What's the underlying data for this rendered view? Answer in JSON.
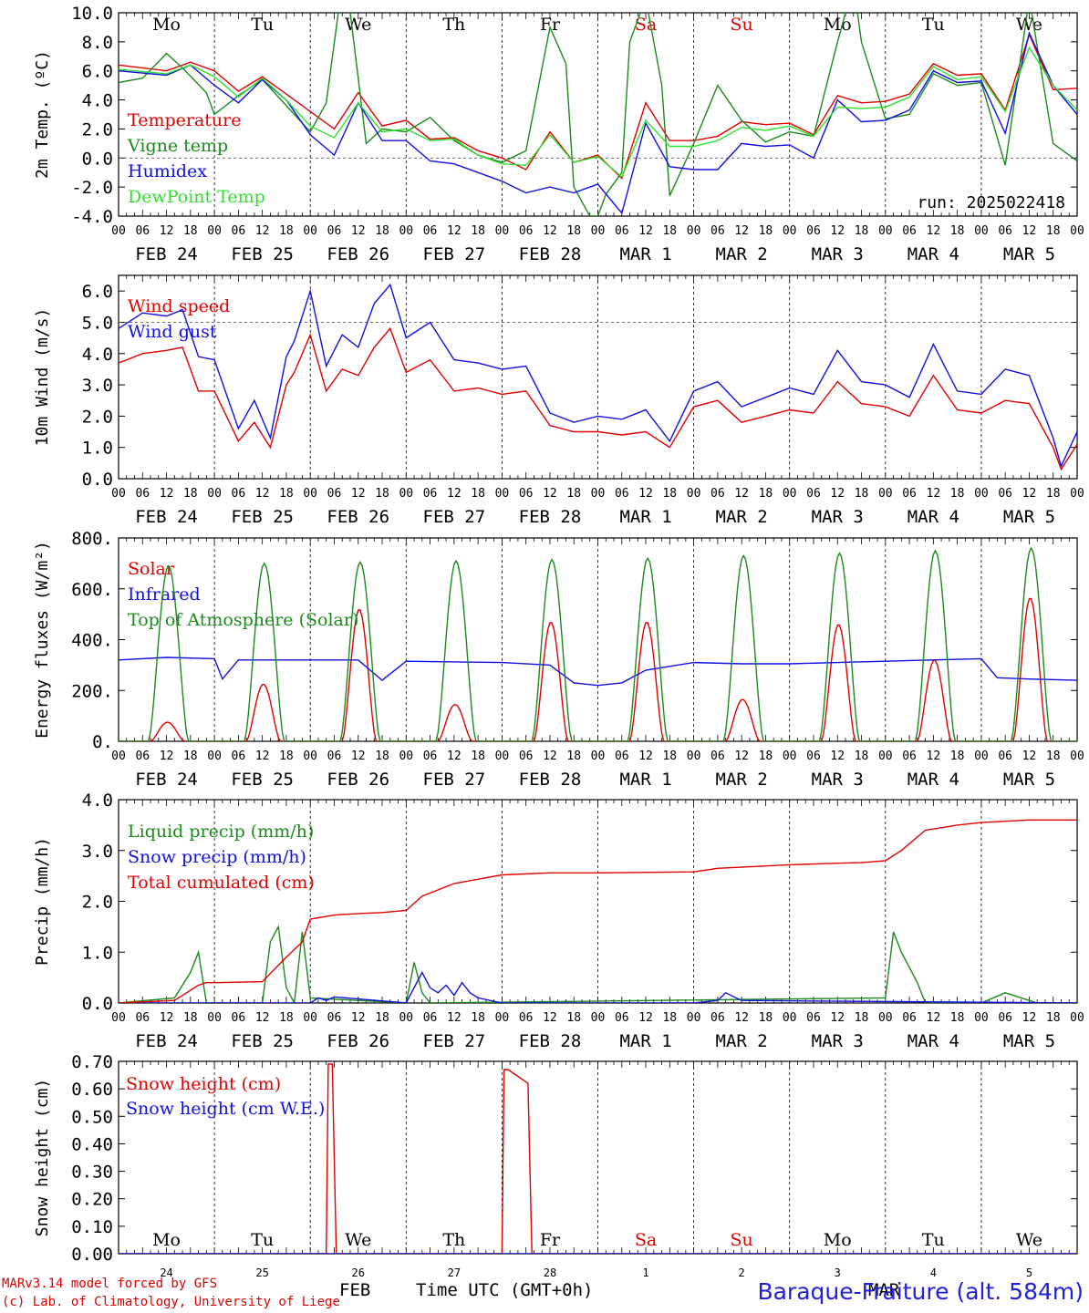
{
  "meta": {
    "run_label": "run: 2025022418",
    "model_label": "MARv3.14 model forced by GFS",
    "credit_label": "(c) Lab. of Climatology, University of Liege",
    "station_title": "Baraque-Fraiture (alt. 584m)",
    "time_axis_title": "Time UTC (GMT+0h)",
    "month_feb": "FEB",
    "month_mar": "MAR"
  },
  "day_names": [
    "Mo",
    "Tu",
    "We",
    "Th",
    "Fr",
    "Sa",
    "Su",
    "Mo",
    "Tu",
    "We"
  ],
  "weekend_days": [
    5,
    6
  ],
  "date_labels": [
    "FEB 24",
    "FEB 25",
    "FEB 26",
    "FEB 27",
    "FEB 28",
    "MAR  1",
    "MAR  2",
    "MAR  3",
    "MAR  4",
    "MAR  5"
  ],
  "day_numbers": [
    "24",
    "25",
    "26",
    "27",
    "28",
    "1",
    "2",
    "3",
    "4",
    "5"
  ],
  "hour_labels": [
    "00",
    "06",
    "12",
    "18"
  ],
  "last_hour_label": "00",
  "colors": {
    "red": "#e00000",
    "green": "#1a8a1a",
    "blue": "#1010e0",
    "lightgreen": "#30e030",
    "axis": "#000000"
  },
  "chart_data": [
    {
      "type": "line",
      "name": "temperature",
      "ylabel": "2m Temp. (ºC)",
      "ylim": [
        -4,
        10
      ],
      "y_ticks": [
        "-4.0",
        "-2.0",
        "0.0",
        "2.0",
        "4.0",
        "6.0",
        "8.0",
        "10.0"
      ],
      "ref_line": 0,
      "x_unit": "hours since Feb 24 00 UTC",
      "series": [
        {
          "name": "Temperature",
          "color": "#e00000",
          "x": [
            0,
            12,
            18,
            24,
            30,
            36,
            42,
            48,
            54,
            60,
            66,
            72,
            78,
            84,
            90,
            96,
            102,
            108,
            114,
            120,
            126,
            132,
            138,
            144,
            150,
            156,
            162,
            168,
            174,
            180,
            186,
            192,
            198,
            204,
            210,
            216,
            222,
            228,
            234,
            240
          ],
          "y": [
            6.4,
            6.0,
            6.6,
            6.0,
            4.6,
            5.6,
            4.4,
            3.2,
            2.0,
            4.5,
            2.2,
            2.6,
            1.3,
            1.4,
            0.5,
            0.0,
            -0.8,
            1.8,
            -0.3,
            0.2,
            -1.4,
            3.8,
            1.2,
            1.2,
            1.5,
            2.5,
            2.3,
            2.4,
            1.6,
            4.3,
            3.8,
            3.9,
            4.4,
            6.5,
            5.7,
            5.8,
            3.3,
            8.5,
            4.7,
            4.8
          ]
        },
        {
          "name": "Vigne temp",
          "color": "#1a8a1a",
          "x": [
            0,
            6,
            12,
            16,
            22,
            24,
            30,
            36,
            42,
            48,
            52,
            56,
            58,
            62,
            66,
            72,
            78,
            84,
            90,
            96,
            102,
            108,
            112,
            114,
            118,
            120,
            122,
            126,
            128,
            132,
            136,
            138,
            144,
            150,
            156,
            162,
            168,
            174,
            180,
            184,
            186,
            192,
            198,
            204,
            210,
            216,
            222,
            228,
            234,
            240
          ],
          "y": [
            5.2,
            5.5,
            7.2,
            6.2,
            4.5,
            3.0,
            4.3,
            5.4,
            3.6,
            1.8,
            3.8,
            12.0,
            10.0,
            1.0,
            2.0,
            1.8,
            2.8,
            1.2,
            0.2,
            -0.3,
            0.5,
            9.0,
            6.5,
            -2.0,
            -4.0,
            -4.0,
            -2.5,
            -1.0,
            8.0,
            11.0,
            5.0,
            -2.6,
            1.0,
            5.0,
            2.6,
            1.1,
            1.8,
            1.5,
            8.0,
            12.0,
            8.0,
            2.7,
            3.0,
            5.8,
            5.0,
            5.2,
            -0.5,
            11.0,
            1.0,
            -0.2
          ]
        },
        {
          "name": "Humidex",
          "color": "#1010e0",
          "x": [
            0,
            12,
            18,
            24,
            30,
            36,
            42,
            48,
            54,
            60,
            66,
            72,
            78,
            84,
            90,
            96,
            102,
            108,
            114,
            120,
            126,
            132,
            138,
            144,
            150,
            156,
            162,
            168,
            174,
            180,
            186,
            192,
            198,
            204,
            210,
            216,
            222,
            228,
            234,
            240
          ],
          "y": [
            6.0,
            5.7,
            6.4,
            5.0,
            3.8,
            5.4,
            4.0,
            1.6,
            0.2,
            3.8,
            1.2,
            1.2,
            -0.2,
            -0.4,
            -1.0,
            -1.6,
            -2.4,
            -2.0,
            -2.4,
            -1.8,
            -3.8,
            2.4,
            -0.6,
            -0.8,
            -0.8,
            1.0,
            0.8,
            0.9,
            0.0,
            4.0,
            2.5,
            2.6,
            3.3,
            6.0,
            5.2,
            5.3,
            1.7,
            8.6,
            5.0,
            3.0
          ]
        },
        {
          "name": "DewPoint Temp",
          "color": "#30e030",
          "x": [
            0,
            12,
            18,
            24,
            30,
            36,
            42,
            48,
            54,
            60,
            66,
            72,
            78,
            84,
            90,
            96,
            102,
            108,
            114,
            120,
            126,
            132,
            138,
            144,
            150,
            156,
            162,
            168,
            174,
            180,
            186,
            192,
            198,
            204,
            210,
            216,
            222,
            228,
            234,
            240
          ],
          "y": [
            6.1,
            5.8,
            6.4,
            5.6,
            4.2,
            5.5,
            4.0,
            2.2,
            1.4,
            3.8,
            1.8,
            2.0,
            1.2,
            1.3,
            0.2,
            -0.4,
            -0.5,
            1.6,
            -0.3,
            0.1,
            -1.3,
            2.6,
            0.8,
            0.8,
            1.2,
            2.1,
            1.9,
            2.2,
            1.5,
            3.5,
            3.4,
            3.5,
            4.2,
            6.3,
            5.4,
            5.6,
            3.2,
            7.6,
            5.0,
            3.3
          ]
        }
      ]
    },
    {
      "type": "line",
      "name": "wind",
      "ylabel": "10m Wind (m/s)",
      "ylim": [
        0,
        6.5
      ],
      "y_ticks": [
        "0.0",
        "1.0",
        "2.0",
        "3.0",
        "4.0",
        "5.0",
        "6.0"
      ],
      "ref_line": 5,
      "series": [
        {
          "name": "Wind speed",
          "color": "#e00000",
          "x": [
            0,
            6,
            12,
            16,
            20,
            24,
            30,
            34,
            38,
            42,
            44,
            48,
            52,
            56,
            60,
            64,
            68,
            72,
            78,
            84,
            90,
            96,
            102,
            108,
            114,
            120,
            126,
            132,
            138,
            144,
            150,
            156,
            162,
            168,
            174,
            180,
            186,
            192,
            198,
            204,
            210,
            216,
            222,
            228,
            234,
            236,
            240
          ],
          "y": [
            3.7,
            4.0,
            4.1,
            4.2,
            2.8,
            2.8,
            1.2,
            1.8,
            1.0,
            3.0,
            3.4,
            4.6,
            2.8,
            3.5,
            3.3,
            4.2,
            4.8,
            3.4,
            3.8,
            2.8,
            2.9,
            2.7,
            2.8,
            1.7,
            1.5,
            1.5,
            1.4,
            1.5,
            1.0,
            2.3,
            2.5,
            1.8,
            2.0,
            2.2,
            2.1,
            3.1,
            2.4,
            2.3,
            2.0,
            3.3,
            2.2,
            2.1,
            2.5,
            2.4,
            1.0,
            0.3,
            1.1
          ]
        },
        {
          "name": "Wind gust",
          "color": "#1010e0",
          "x": [
            0,
            6,
            12,
            16,
            20,
            24,
            30,
            34,
            38,
            42,
            44,
            48,
            52,
            56,
            60,
            64,
            68,
            72,
            78,
            84,
            90,
            96,
            102,
            108,
            114,
            120,
            126,
            132,
            138,
            144,
            150,
            156,
            162,
            168,
            174,
            180,
            186,
            192,
            198,
            204,
            210,
            216,
            222,
            228,
            234,
            236,
            240
          ],
          "y": [
            4.8,
            5.3,
            5.2,
            5.4,
            3.9,
            3.8,
            1.6,
            2.5,
            1.3,
            3.9,
            4.4,
            6.0,
            3.6,
            4.6,
            4.2,
            5.6,
            6.2,
            4.5,
            5.0,
            3.8,
            3.7,
            3.5,
            3.6,
            2.1,
            1.8,
            2.0,
            1.9,
            2.2,
            1.2,
            2.8,
            3.1,
            2.3,
            2.6,
            2.9,
            2.7,
            4.1,
            3.1,
            3.0,
            2.6,
            4.3,
            2.8,
            2.7,
            3.5,
            3.3,
            1.3,
            0.4,
            1.5
          ]
        }
      ]
    },
    {
      "type": "line",
      "name": "energy",
      "ylabel": "Energy fluxes (W/m²)",
      "ylim": [
        0,
        800
      ],
      "y_ticks": [
        "0.",
        "200.",
        "400.",
        "600.",
        "800."
      ],
      "series": [
        {
          "name": "Solar",
          "color": "#e00000",
          "day_peaks": [
            75,
            225,
            520,
            145,
            470,
            470,
            165,
            460,
            320,
            565
          ]
        },
        {
          "name": "Infrared",
          "color": "#1010e0",
          "x": [
            0,
            12,
            24,
            26,
            30,
            48,
            60,
            66,
            72,
            96,
            108,
            114,
            120,
            126,
            132,
            144,
            156,
            168,
            180,
            192,
            204,
            216,
            220,
            228,
            240
          ],
          "y": [
            320,
            330,
            325,
            245,
            320,
            320,
            320,
            240,
            315,
            310,
            300,
            230,
            220,
            230,
            280,
            310,
            305,
            305,
            310,
            315,
            320,
            325,
            250,
            245,
            240
          ]
        },
        {
          "name": "Top of Atmosphere (Solar)",
          "color": "#1a8a1a",
          "day_peaks": [
            690,
            700,
            705,
            710,
            715,
            720,
            730,
            740,
            750,
            760
          ]
        }
      ]
    },
    {
      "type": "line",
      "name": "precip",
      "ylabel": "Precip (mm/h)",
      "ylim": [
        0,
        4
      ],
      "y_ticks": [
        "0.0",
        "1.0",
        "2.0",
        "3.0",
        "4.0"
      ],
      "series": [
        {
          "name": "Liquid precip (mm/h)",
          "color": "#1a8a1a",
          "x": [
            0,
            14,
            18,
            20,
            22,
            36,
            38,
            40,
            42,
            44,
            46,
            48,
            72,
            74,
            76,
            78,
            192,
            194,
            196,
            200,
            202,
            216,
            222,
            226,
            230,
            240
          ],
          "y": [
            0,
            0.1,
            0.6,
            1.0,
            0,
            0,
            1.2,
            1.5,
            0.3,
            0,
            1.4,
            0.1,
            0,
            0.8,
            0.2,
            0,
            0.1,
            1.4,
            1.0,
            0.4,
            0,
            0,
            0.2,
            0.1,
            0,
            0
          ],
          "spikes_note": ""
        },
        {
          "name": "Snow precip (mm/h)",
          "color": "#1010e0",
          "x": [
            0,
            48,
            50,
            52,
            54,
            72,
            76,
            78,
            80,
            82,
            84,
            86,
            88,
            90,
            96,
            144,
            150,
            152,
            156,
            240
          ],
          "y": [
            0,
            0,
            0.1,
            0.05,
            0.12,
            0,
            0.6,
            0.3,
            0.2,
            0.35,
            0.15,
            0.4,
            0.2,
            0.1,
            0,
            0,
            0.05,
            0.2,
            0.05,
            0
          ]
        },
        {
          "name": "Total cumulated (cm)",
          "color": "#e00000",
          "x": [
            0,
            14,
            20,
            22,
            24,
            36,
            42,
            46,
            48,
            54,
            60,
            66,
            72,
            76,
            84,
            96,
            108,
            120,
            144,
            150,
            168,
            180,
            186,
            192,
            196,
            202,
            210,
            216,
            228,
            240
          ],
          "y": [
            0,
            0.05,
            0.35,
            0.4,
            0.4,
            0.42,
            0.9,
            1.2,
            1.65,
            1.73,
            1.76,
            1.78,
            1.82,
            2.1,
            2.35,
            2.52,
            2.56,
            2.56,
            2.58,
            2.65,
            2.72,
            2.75,
            2.76,
            2.8,
            3.0,
            3.4,
            3.5,
            3.55,
            3.6,
            3.6
          ]
        }
      ]
    },
    {
      "type": "line",
      "name": "snow",
      "ylabel": "Snow height (cm)",
      "ylim": [
        0,
        0.7
      ],
      "y_ticks": [
        "0.00",
        "0.10",
        "0.20",
        "0.30",
        "0.40",
        "0.50",
        "0.60",
        "0.70"
      ],
      "series": [
        {
          "name": "Snow height (cm)",
          "color": "#e00000",
          "x": [
            0,
            52,
            52.5,
            53.5,
            54.5,
            96,
            96.5,
            97.5,
            102.5,
            103.5,
            240
          ],
          "y": [
            0,
            0,
            0.69,
            0.69,
            0,
            0,
            0.67,
            0.67,
            0.62,
            0,
            0
          ]
        },
        {
          "name": "Snow height (cm W.E.)",
          "color": "#1010e0",
          "x": [
            0,
            240
          ],
          "y": [
            0,
            0
          ]
        }
      ]
    }
  ]
}
